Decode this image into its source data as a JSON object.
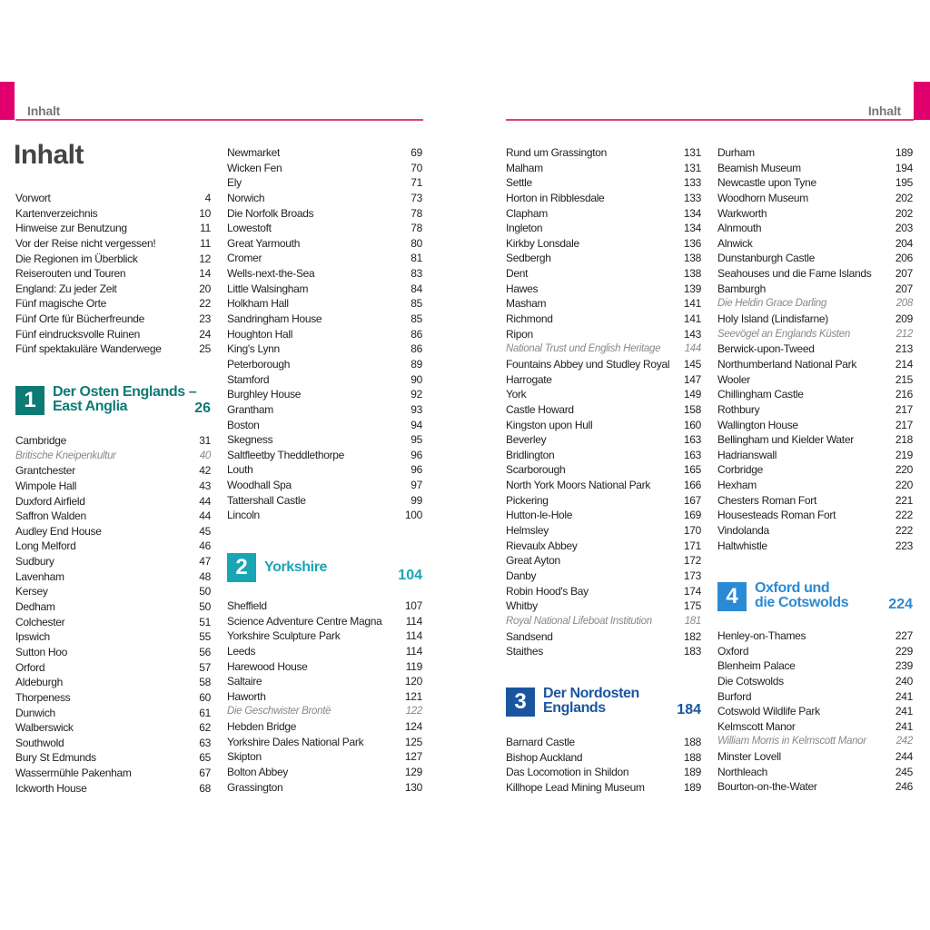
{
  "colors": {
    "accent": "#e0006e",
    "section1": "#0e7a74",
    "section2": "#1aa5b5",
    "section3": "#1a56a0",
    "section4": "#2a8ad4"
  },
  "header": {
    "left": "Inhalt",
    "right": "Inhalt"
  },
  "title": "Inhalt",
  "intro": [
    {
      "t": "Vorwort",
      "p": "4"
    },
    {
      "t": "Kartenverzeichnis",
      "p": "10"
    },
    {
      "t": "Hinweise zur Benutzung",
      "p": "11"
    },
    {
      "t": "Vor der Reise nicht vergessen!",
      "p": "11"
    },
    {
      "t": "Die Regionen im Überblick",
      "p": "12"
    },
    {
      "t": "Reiserouten und Touren",
      "p": "14"
    },
    {
      "t": "England: Zu jeder Zeit",
      "p": "20"
    },
    {
      "t": "Fünf magische Orte",
      "p": "22"
    },
    {
      "t": "Fünf Orte für Bücherfreunde",
      "p": "23"
    },
    {
      "t": "Fünf eindrucksvolle Ruinen",
      "p": "24"
    },
    {
      "t": "Fünf spektakuläre Wanderwege",
      "p": "25"
    }
  ],
  "sections": [
    {
      "num": "1",
      "line1": "Der Osten Englands –",
      "line2": "East Anglia",
      "page": "26",
      "items": [
        {
          "t": "Cambridge",
          "p": "31"
        },
        {
          "t": "Britische Kneipenkultur",
          "p": "40",
          "i": true
        },
        {
          "t": "Grantchester",
          "p": "42"
        },
        {
          "t": "Wimpole Hall",
          "p": "43"
        },
        {
          "t": "Duxford Airfield",
          "p": "44"
        },
        {
          "t": "Saffron Walden",
          "p": "44"
        },
        {
          "t": "Audley End House",
          "p": "45"
        },
        {
          "t": "Long Melford",
          "p": "46"
        },
        {
          "t": "Sudbury",
          "p": "47"
        },
        {
          "t": "Lavenham",
          "p": "48"
        },
        {
          "t": "Kersey",
          "p": "50"
        },
        {
          "t": "Dedham",
          "p": "50"
        },
        {
          "t": "Colchester",
          "p": "51"
        },
        {
          "t": "Ipswich",
          "p": "55"
        },
        {
          "t": "Sutton Hoo",
          "p": "56"
        },
        {
          "t": "Orford",
          "p": "57"
        },
        {
          "t": "Aldeburgh",
          "p": "58"
        },
        {
          "t": "Thorpeness",
          "p": "60"
        },
        {
          "t": "Dunwich",
          "p": "61"
        },
        {
          "t": "Walberswick",
          "p": "62"
        },
        {
          "t": "Southwold",
          "p": "63"
        },
        {
          "t": "Bury St Edmunds",
          "p": "65"
        },
        {
          "t": "Wassermühle Pakenham",
          "p": "67"
        },
        {
          "t": "Ickworth House",
          "p": "68"
        },
        {
          "t": "Newmarket",
          "p": "69"
        },
        {
          "t": "Wicken Fen",
          "p": "70"
        },
        {
          "t": "Ely",
          "p": "71"
        },
        {
          "t": "Norwich",
          "p": "73"
        },
        {
          "t": "Die Norfolk Broads",
          "p": "78"
        },
        {
          "t": "Lowestoft",
          "p": "78"
        },
        {
          "t": "Great Yarmouth",
          "p": "80"
        },
        {
          "t": "Cromer",
          "p": "81"
        },
        {
          "t": "Wells-next-the-Sea",
          "p": "83"
        },
        {
          "t": "Little Walsingham",
          "p": "84"
        },
        {
          "t": "Holkham Hall",
          "p": "85"
        },
        {
          "t": "Sandringham House",
          "p": "85"
        },
        {
          "t": "Houghton Hall",
          "p": "86"
        },
        {
          "t": "King's Lynn",
          "p": "86"
        },
        {
          "t": "Peterborough",
          "p": "89"
        },
        {
          "t": "Stamford",
          "p": "90"
        },
        {
          "t": "Burghley House",
          "p": "92"
        },
        {
          "t": "Grantham",
          "p": "93"
        },
        {
          "t": "Boston",
          "p": "94"
        },
        {
          "t": "Skegness",
          "p": "95"
        },
        {
          "t": "Saltfleetby Theddlethorpe",
          "p": "96"
        },
        {
          "t": "Louth",
          "p": "96"
        },
        {
          "t": "Woodhall Spa",
          "p": "97"
        },
        {
          "t": "Tattershall Castle",
          "p": "99"
        },
        {
          "t": "Lincoln",
          "p": "100"
        }
      ]
    },
    {
      "num": "2",
      "line1": "Yorkshire",
      "line2": "",
      "page": "104",
      "items": [
        {
          "t": "Sheffield",
          "p": "107"
        },
        {
          "t": "Science Adventure Centre Magna",
          "p": "114"
        },
        {
          "t": "Yorkshire Sculpture Park",
          "p": "114"
        },
        {
          "t": "Leeds",
          "p": "114"
        },
        {
          "t": "Harewood House",
          "p": "119"
        },
        {
          "t": "Saltaire",
          "p": "120"
        },
        {
          "t": "Haworth",
          "p": "121"
        },
        {
          "t": "Die Geschwister Brontë",
          "p": "122",
          "i": true
        },
        {
          "t": "Hebden Bridge",
          "p": "124"
        },
        {
          "t": "Yorkshire Dales National Park",
          "p": "125"
        },
        {
          "t": "Skipton",
          "p": "127"
        },
        {
          "t": "Bolton Abbey",
          "p": "129"
        },
        {
          "t": "Grassington",
          "p": "130"
        },
        {
          "t": "Rund um Grassington",
          "p": "131"
        },
        {
          "t": "Malham",
          "p": "131"
        },
        {
          "t": "Settle",
          "p": "133"
        },
        {
          "t": "Horton in Ribblesdale",
          "p": "133"
        },
        {
          "t": "Clapham",
          "p": "134"
        },
        {
          "t": "Ingleton",
          "p": "134"
        },
        {
          "t": "Kirkby Lonsdale",
          "p": "136"
        },
        {
          "t": "Sedbergh",
          "p": "138"
        },
        {
          "t": "Dent",
          "p": "138"
        },
        {
          "t": "Hawes",
          "p": "139"
        },
        {
          "t": "Masham",
          "p": "141"
        },
        {
          "t": "Richmond",
          "p": "141"
        },
        {
          "t": "Ripon",
          "p": "143"
        },
        {
          "t": "National Trust und English Heritage",
          "p": "144",
          "i": true
        },
        {
          "t": "Fountains Abbey und Studley Royal",
          "p": "145"
        },
        {
          "t": "Harrogate",
          "p": "147"
        },
        {
          "t": "York",
          "p": "149"
        },
        {
          "t": "Castle Howard",
          "p": "158"
        },
        {
          "t": "Kingston upon Hull",
          "p": "160"
        },
        {
          "t": "Beverley",
          "p": "163"
        },
        {
          "t": "Bridlington",
          "p": "163"
        },
        {
          "t": "Scarborough",
          "p": "165"
        },
        {
          "t": "North York Moors National Park",
          "p": "166"
        },
        {
          "t": "Pickering",
          "p": "167"
        },
        {
          "t": "Hutton-le-Hole",
          "p": "169"
        },
        {
          "t": "Helmsley",
          "p": "170"
        },
        {
          "t": "Rievaulx Abbey",
          "p": "171"
        },
        {
          "t": "Great Ayton",
          "p": "172"
        },
        {
          "t": "Danby",
          "p": "173"
        },
        {
          "t": "Robin Hood's Bay",
          "p": "174"
        },
        {
          "t": "Whitby",
          "p": "175"
        },
        {
          "t": "Royal National Lifeboat Institution",
          "p": "181",
          "i": true
        },
        {
          "t": "Sandsend",
          "p": "182"
        },
        {
          "t": "Staithes",
          "p": "183"
        }
      ]
    },
    {
      "num": "3",
      "line1": "Der Nordosten",
      "line2": "Englands",
      "page": "184",
      "items": [
        {
          "t": "Barnard Castle",
          "p": "188"
        },
        {
          "t": "Bishop Auckland",
          "p": "188"
        },
        {
          "t": "Das Locomotion in Shildon",
          "p": "189"
        },
        {
          "t": "Killhope Lead Mining Museum",
          "p": "189"
        },
        {
          "t": "Durham",
          "p": "189"
        },
        {
          "t": "Beamish Museum",
          "p": "194"
        },
        {
          "t": "Newcastle upon Tyne",
          "p": "195"
        },
        {
          "t": "Woodhorn Museum",
          "p": "202"
        },
        {
          "t": "Warkworth",
          "p": "202"
        },
        {
          "t": "Alnmouth",
          "p": "203"
        },
        {
          "t": "Alnwick",
          "p": "204"
        },
        {
          "t": "Dunstanburgh Castle",
          "p": "206"
        },
        {
          "t": "Seahouses und die Farne Islands",
          "p": "207"
        },
        {
          "t": "Bamburgh",
          "p": "207"
        },
        {
          "t": "Die Heldin Grace Darling",
          "p": "208",
          "i": true
        },
        {
          "t": "Holy Island (Lindisfarne)",
          "p": "209"
        },
        {
          "t": "Seevögel an Englands Küsten",
          "p": "212",
          "i": true
        },
        {
          "t": "Berwick-upon-Tweed",
          "p": "213"
        },
        {
          "t": "Northumberland National Park",
          "p": "214"
        },
        {
          "t": "Wooler",
          "p": "215"
        },
        {
          "t": "Chillingham Castle",
          "p": "216"
        },
        {
          "t": "Rothbury",
          "p": "217"
        },
        {
          "t": "Wallington House",
          "p": "217"
        },
        {
          "t": "Bellingham und Kielder Water",
          "p": "218"
        },
        {
          "t": "Hadrianswall",
          "p": "219"
        },
        {
          "t": "Corbridge",
          "p": "220"
        },
        {
          "t": "Hexham",
          "p": "220"
        },
        {
          "t": "Chesters Roman Fort",
          "p": "221"
        },
        {
          "t": "Housesteads Roman Fort",
          "p": "222"
        },
        {
          "t": "Vindolanda",
          "p": "222"
        },
        {
          "t": "Haltwhistle",
          "p": "223"
        }
      ]
    },
    {
      "num": "4",
      "line1": "Oxford und",
      "line2": "die Cotswolds",
      "page": "224",
      "items": [
        {
          "t": "Henley-on-Thames",
          "p": "227"
        },
        {
          "t": "Oxford",
          "p": "229"
        },
        {
          "t": "Blenheim Palace",
          "p": "239"
        },
        {
          "t": "Die Cotswolds",
          "p": "240"
        },
        {
          "t": "Burford",
          "p": "241"
        },
        {
          "t": "Cotswold Wildlife Park",
          "p": "241"
        },
        {
          "t": "Kelmscott Manor",
          "p": "241"
        },
        {
          "t": "William Morris in Kelmscott Manor",
          "p": "242",
          "i": true
        },
        {
          "t": "Minster Lovell",
          "p": "244"
        },
        {
          "t": "Northleach",
          "p": "245"
        },
        {
          "t": "Bourton-on-the-Water",
          "p": "246"
        }
      ]
    }
  ]
}
